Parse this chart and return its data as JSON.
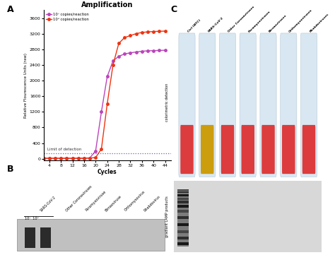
{
  "title": "Amplification",
  "ylabel": "Relative Flourescence Units (raw)",
  "xlabel": "Cycles",
  "xlim": [
    2,
    46
  ],
  "ylim": [
    -50,
    3800
  ],
  "yticks": [
    0,
    400,
    800,
    1200,
    1600,
    2000,
    2400,
    2800,
    3200,
    3600
  ],
  "xticks": [
    4,
    8,
    12,
    16,
    20,
    24,
    28,
    32,
    36,
    40,
    44
  ],
  "limit_of_detection_y": 130,
  "limit_label": "Limit of detection",
  "color_10_7": "#bb44bb",
  "color_10_6": "#ee3311",
  "label_10_7": "10⁷ copies/reaction",
  "label_10_6": "10⁶ copies/reaction",
  "cycles": [
    2,
    4,
    6,
    8,
    10,
    12,
    14,
    16,
    18,
    20,
    22,
    24,
    26,
    28,
    30,
    32,
    34,
    36,
    38,
    40,
    42,
    44
  ],
  "data_10_7": [
    10,
    10,
    10,
    10,
    10,
    10,
    10,
    15,
    20,
    200,
    1200,
    2100,
    2500,
    2620,
    2680,
    2710,
    2730,
    2750,
    2760,
    2765,
    2770,
    2775
  ],
  "data_10_6": [
    10,
    10,
    10,
    10,
    10,
    10,
    10,
    10,
    15,
    30,
    250,
    1400,
    2400,
    2950,
    3100,
    3150,
    3200,
    3230,
    3245,
    3255,
    3260,
    3265
  ],
  "gel_labels_B": [
    "SARS-CoV-2",
    "Other Coronaviruses",
    "Paramyxoviruse",
    "Birnaoviruse",
    "Orthomyxovirus",
    "Rhabdovirus"
  ],
  "tube_labels_C": [
    "Ctrl (NTC)",
    "SARS-CoV-2",
    "Other Coronaviruses",
    "Paramyxoviruses",
    "Birnaoviruses",
    "Orthomyxoviruses",
    "Rhabdoviruses"
  ],
  "tube_colors": [
    "#dd3333",
    "#cc9900",
    "#dd3333",
    "#dd3333",
    "#dd3333",
    "#dd3333",
    "#dd3333"
  ],
  "panel_A_label": "A",
  "panel_B_label": "B",
  "panel_C_label": "C",
  "bg_color": "#ffffff",
  "colorimetric_label": "colorimetric detection",
  "gel_side_label": "gradiant LAMP products",
  "tube_bg": "#dde8ee",
  "gel_bg_top": "#e8e8e8",
  "gel_bg_bot": "#d8d8d8"
}
